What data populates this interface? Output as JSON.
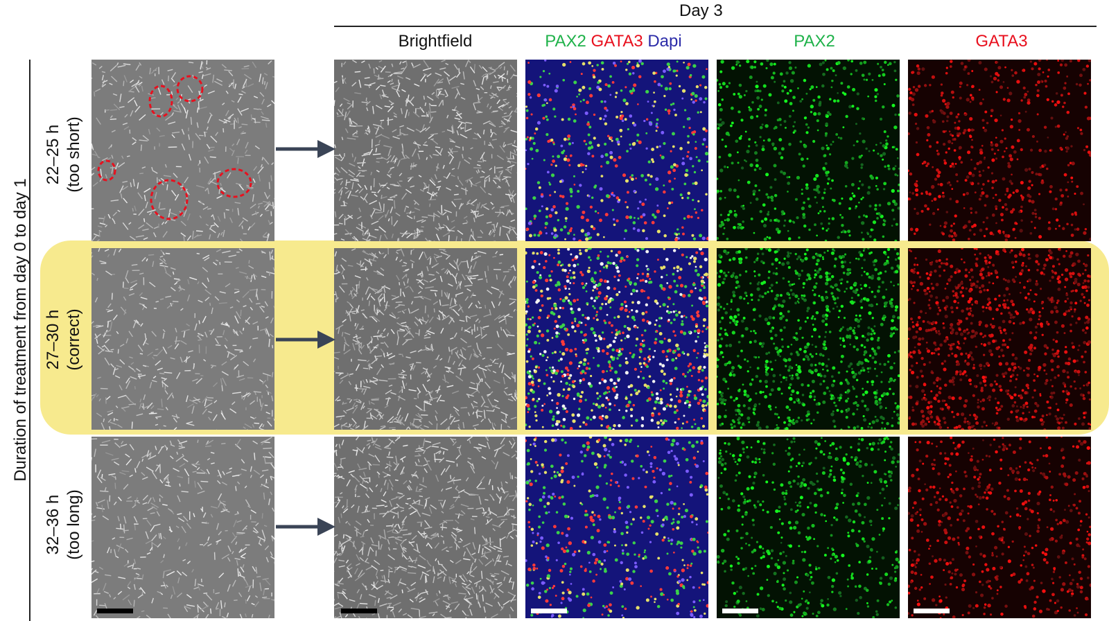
{
  "header": {
    "day_title": "Day 3",
    "columns": [
      {
        "label": "Brightfield"
      },
      {
        "label_parts": [
          {
            "text": "PAX2",
            "color": "#1fb24a"
          },
          {
            "text": " GATA3",
            "color": "#e8101e"
          },
          {
            "text": " Dapi",
            "color": "#2b2ba8"
          }
        ]
      },
      {
        "label": "PAX2",
        "color": "#1fb24a"
      },
      {
        "label": "GATA3",
        "color": "#e8101e"
      }
    ]
  },
  "axis": {
    "label": "Duration of treatment from day 0 to day 1"
  },
  "rows": [
    {
      "line1": "22–25 h",
      "line2": "(too short)",
      "highlighted": false
    },
    {
      "line1": "27–30 h",
      "line2": "(correct)",
      "highlighted": true
    },
    {
      "line1": "32–36 h",
      "line2": "(too long)",
      "highlighted": false
    }
  ],
  "colors": {
    "highlight": "#f7ea8e",
    "arrow": "#3a4456",
    "circle_marks": "#e8101e",
    "pax2": "#1fb24a",
    "gata3": "#e8101e",
    "dapi": "#2b2ba8"
  }
}
